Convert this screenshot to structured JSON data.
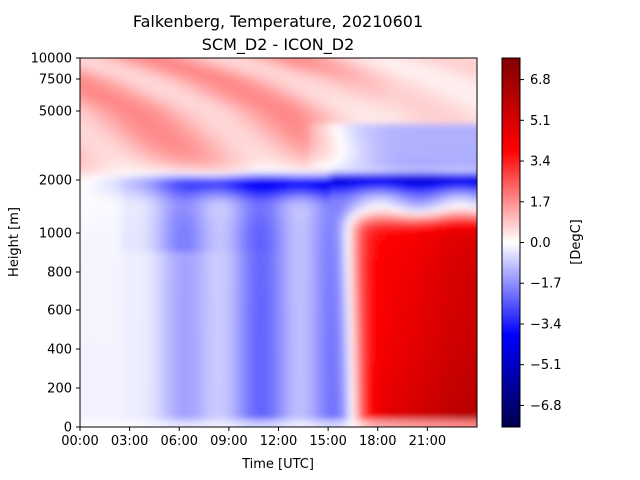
{
  "chart_data": {
    "type": "heatmap",
    "title": "Falkenberg, Temperature, 20210601",
    "subtitle": "SCM_D2 - ICON_D2",
    "xlabel": "Time [UTC]",
    "ylabel": "Height [m]",
    "colorbar_label": "[DegC]",
    "colormap": "seismic",
    "x_ticks": [
      "00:00",
      "03:00",
      "06:00",
      "09:00",
      "12:00",
      "15:00",
      "18:00",
      "21:00"
    ],
    "x_range_hours": [
      0,
      24
    ],
    "y_ticks": [
      "0",
      "200",
      "400",
      "600",
      "800",
      "1000",
      "2000",
      "5000",
      "7500",
      "10000"
    ],
    "y_tick_values": [
      0,
      200,
      400,
      600,
      800,
      1000,
      2000,
      5000,
      7500,
      10000
    ],
    "y_range": [
      0,
      10000
    ],
    "color_range": [
      -7.7,
      7.7
    ],
    "colorbar_ticks": [
      "6.8",
      "5.1",
      "3.4",
      "1.7",
      "0.0",
      "−1.7",
      "−3.4",
      "−5.1",
      "−6.8"
    ],
    "colorbar_tick_values": [
      6.8,
      5.1,
      3.4,
      1.7,
      0.0,
      -1.7,
      -3.4,
      -5.1,
      -6.8
    ],
    "field_description_hours": [
      0,
      3,
      6,
      9,
      12,
      15,
      18,
      21,
      24
    ],
    "approximate_values": {
      "near_surface_evening": 6.5,
      "boundary_layer_daytime": -2.5,
      "inversion_near_2000m_max_cooling": -4.5,
      "upper_troposphere": 1.5,
      "early_morning_near_surface": -0.3
    }
  }
}
